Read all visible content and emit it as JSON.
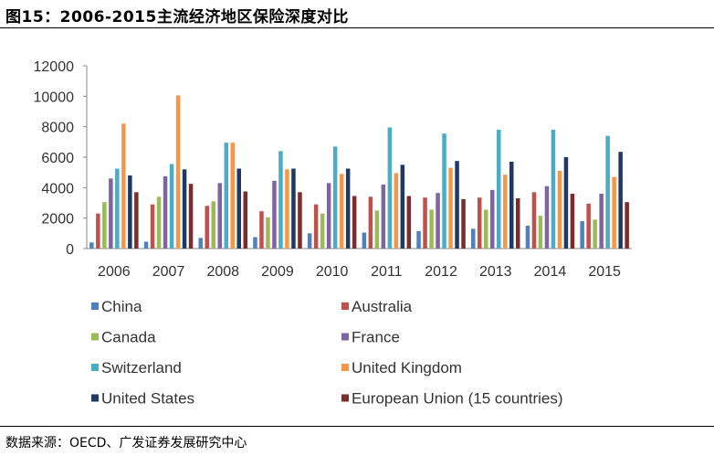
{
  "figure": {
    "title": "图15：2006-2015主流经济地区保险深度对比",
    "source": "数据来源：OECD、广发证券发展研究中心"
  },
  "chart_data": {
    "type": "bar",
    "title": "",
    "xlabel": "",
    "ylabel": "",
    "ylim": [
      0,
      12000
    ],
    "yticks": [
      0,
      2000,
      4000,
      6000,
      8000,
      10000,
      12000
    ],
    "grid": false,
    "legend_position": "bottom",
    "categories": [
      "2006",
      "2007",
      "2008",
      "2009",
      "2010",
      "2011",
      "2012",
      "2013",
      "2014",
      "2015"
    ],
    "series": [
      {
        "name": "China",
        "color": "#4f81bd",
        "values": [
          400,
          450,
          700,
          750,
          1000,
          1050,
          1150,
          1300,
          1500,
          1800
        ]
      },
      {
        "name": "Australia",
        "color": "#c0504d",
        "values": [
          2300,
          2900,
          2800,
          2450,
          2900,
          3400,
          3350,
          3350,
          3700,
          2950
        ]
      },
      {
        "name": "Canada",
        "color": "#9bbb59",
        "values": [
          3050,
          3400,
          3100,
          2050,
          2300,
          2500,
          2550,
          2550,
          2150,
          1900
        ]
      },
      {
        "name": "France",
        "color": "#8064a2",
        "values": [
          4600,
          4750,
          4300,
          4450,
          4300,
          4200,
          3650,
          3850,
          4100,
          3600
        ]
      },
      {
        "name": "Switzerland",
        "color": "#4bacc6",
        "values": [
          5250,
          5550,
          6950,
          6400,
          6700,
          7950,
          7550,
          7800,
          7800,
          7400
        ]
      },
      {
        "name": "United Kingdom",
        "color": "#f79646",
        "values": [
          8200,
          10050,
          6950,
          5200,
          4900,
          4950,
          5300,
          4850,
          5100,
          4700
        ]
      },
      {
        "name": "United States",
        "color": "#1f3864",
        "values": [
          4800,
          5200,
          5250,
          5250,
          5250,
          5500,
          5750,
          5700,
          6000,
          6350
        ]
      },
      {
        "name": "European Union (15 countries)",
        "color": "#7b2c2c",
        "values": [
          3700,
          4250,
          3750,
          3700,
          3450,
          3450,
          3250,
          3300,
          3600,
          3050
        ]
      }
    ]
  }
}
